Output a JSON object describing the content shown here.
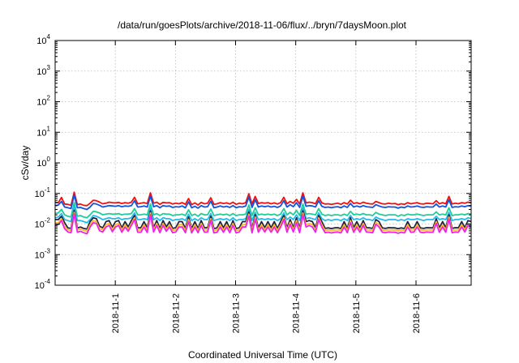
{
  "chart_data": {
    "type": "line",
    "title": "/data/run/goesPlots/archive/2018-11-06/flux/../bryn/7daysMoon.plot",
    "xlabel": "Coordinated Universal Time (UTC)",
    "ylabel": "cSv/day",
    "yscale": "log",
    "ylim": [
      0.0001,
      10000
    ],
    "xlim": [
      "2018-10-31T00:00",
      "2018-11-06T22:00"
    ],
    "x_ticks": [
      {
        "x": "2018-11-01T00:00",
        "label": "2018-11-1"
      },
      {
        "x": "2018-11-02T00:00",
        "label": "2018-11-2"
      },
      {
        "x": "2018-11-03T00:00",
        "label": "2018-11-3"
      },
      {
        "x": "2018-11-04T00:00",
        "label": "2018-11-4"
      },
      {
        "x": "2018-11-05T00:00",
        "label": "2018-11-5"
      },
      {
        "x": "2018-11-06T00:00",
        "label": "2018-11-6"
      }
    ],
    "y_ticks": [
      {
        "value": 0.0001,
        "base": "10",
        "exp": "-4"
      },
      {
        "value": 0.001,
        "base": "10",
        "exp": "-3"
      },
      {
        "value": 0.01,
        "base": "10",
        "exp": "-2"
      },
      {
        "value": 0.1,
        "base": "10",
        "exp": "-1"
      },
      {
        "value": 1,
        "base": "10",
        "exp": "0"
      },
      {
        "value": 10,
        "base": "10",
        "exp": "1"
      },
      {
        "value": 100,
        "base": "10",
        "exp": "2"
      },
      {
        "value": 1000,
        "base": "10",
        "exp": "3"
      },
      {
        "value": 10000,
        "base": "10",
        "exp": "4"
      }
    ],
    "grid": true,
    "legend": "none",
    "series": [
      {
        "color": "#ee1111",
        "values": [
          0.052,
          0.05,
          0.074,
          0.045,
          0.044,
          0.041,
          0.11,
          0.043,
          0.045,
          0.041,
          0.04,
          0.048,
          0.06,
          0.058,
          0.052,
          0.046,
          0.048,
          0.052,
          0.05,
          0.049,
          0.051,
          0.047,
          0.05,
          0.048,
          0.052,
          0.075,
          0.046,
          0.048,
          0.05,
          0.047,
          0.105,
          0.048,
          0.052,
          0.044,
          0.051,
          0.049,
          0.05,
          0.045,
          0.048,
          0.046,
          0.05,
          0.044,
          0.068,
          0.043,
          0.049,
          0.042,
          0.051,
          0.046,
          0.048,
          0.072,
          0.044,
          0.046,
          0.05,
          0.047,
          0.049,
          0.045,
          0.052,
          0.044,
          0.048,
          0.046,
          0.05,
          0.098,
          0.045,
          0.08,
          0.047,
          0.05,
          0.048,
          0.05,
          0.046,
          0.049,
          0.045,
          0.05,
          0.075,
          0.046,
          0.055,
          0.048,
          0.064,
          0.045,
          0.105,
          0.049,
          0.052,
          0.05,
          0.046,
          0.075,
          0.049,
          0.045,
          0.046,
          0.044,
          0.046,
          0.048,
          0.044,
          0.05,
          0.045,
          0.06,
          0.047,
          0.05,
          0.046,
          0.052,
          0.048,
          0.046,
          0.045,
          0.055,
          0.05,
          0.046,
          0.045,
          0.048,
          0.046,
          0.047,
          0.043,
          0.046,
          0.044,
          0.05,
          0.046,
          0.048,
          0.05,
          0.046,
          0.045,
          0.048,
          0.047,
          0.046,
          0.058,
          0.046,
          0.05,
          0.046,
          0.08,
          0.045,
          0.048,
          0.046,
          0.05,
          0.048,
          0.052,
          0.05
        ]
      },
      {
        "color": "#1155dd",
        "values": [
          0.04,
          0.042,
          0.055,
          0.036,
          0.034,
          0.032,
          0.088,
          0.034,
          0.035,
          0.032,
          0.03,
          0.036,
          0.047,
          0.045,
          0.041,
          0.036,
          0.038,
          0.04,
          0.039,
          0.038,
          0.04,
          0.037,
          0.039,
          0.038,
          0.04,
          0.058,
          0.036,
          0.037,
          0.039,
          0.036,
          0.082,
          0.037,
          0.04,
          0.034,
          0.04,
          0.038,
          0.039,
          0.035,
          0.037,
          0.036,
          0.039,
          0.034,
          0.053,
          0.034,
          0.038,
          0.033,
          0.04,
          0.036,
          0.037,
          0.056,
          0.034,
          0.036,
          0.039,
          0.036,
          0.038,
          0.035,
          0.04,
          0.034,
          0.037,
          0.036,
          0.039,
          0.076,
          0.035,
          0.062,
          0.036,
          0.039,
          0.037,
          0.039,
          0.036,
          0.038,
          0.035,
          0.039,
          0.058,
          0.036,
          0.043,
          0.037,
          0.05,
          0.035,
          0.082,
          0.038,
          0.04,
          0.039,
          0.036,
          0.058,
          0.038,
          0.035,
          0.036,
          0.034,
          0.036,
          0.037,
          0.034,
          0.039,
          0.035,
          0.047,
          0.036,
          0.039,
          0.036,
          0.04,
          0.037,
          0.036,
          0.035,
          0.043,
          0.039,
          0.036,
          0.035,
          0.037,
          0.036,
          0.036,
          0.033,
          0.036,
          0.034,
          0.039,
          0.036,
          0.037,
          0.039,
          0.036,
          0.035,
          0.037,
          0.036,
          0.036,
          0.045,
          0.036,
          0.039,
          0.036,
          0.062,
          0.035,
          0.037,
          0.036,
          0.039,
          0.037,
          0.04,
          0.039
        ]
      },
      {
        "color": "#22cc99",
        "values": [
          0.022,
          0.023,
          0.03,
          0.02,
          0.018,
          0.017,
          0.05,
          0.018,
          0.019,
          0.017,
          0.016,
          0.02,
          0.026,
          0.025,
          0.023,
          0.02,
          0.021,
          0.022,
          0.021,
          0.021,
          0.022,
          0.02,
          0.021,
          0.021,
          0.022,
          0.032,
          0.02,
          0.02,
          0.021,
          0.02,
          0.045,
          0.02,
          0.022,
          0.019,
          0.022,
          0.021,
          0.021,
          0.019,
          0.02,
          0.02,
          0.021,
          0.019,
          0.029,
          0.019,
          0.021,
          0.018,
          0.022,
          0.02,
          0.02,
          0.031,
          0.019,
          0.02,
          0.021,
          0.02,
          0.021,
          0.019,
          0.022,
          0.019,
          0.02,
          0.02,
          0.021,
          0.042,
          0.019,
          0.034,
          0.02,
          0.021,
          0.02,
          0.021,
          0.02,
          0.021,
          0.019,
          0.021,
          0.032,
          0.02,
          0.024,
          0.02,
          0.028,
          0.019,
          0.045,
          0.021,
          0.022,
          0.021,
          0.02,
          0.032,
          0.021,
          0.019,
          0.02,
          0.019,
          0.02,
          0.02,
          0.019,
          0.021,
          0.019,
          0.026,
          0.02,
          0.021,
          0.02,
          0.022,
          0.02,
          0.02,
          0.019,
          0.024,
          0.021,
          0.02,
          0.019,
          0.02,
          0.02,
          0.02,
          0.018,
          0.02,
          0.019,
          0.021,
          0.02,
          0.02,
          0.021,
          0.02,
          0.019,
          0.02,
          0.02,
          0.02,
          0.025,
          0.02,
          0.021,
          0.02,
          0.034,
          0.019,
          0.02,
          0.02,
          0.021,
          0.02,
          0.022,
          0.021
        ]
      },
      {
        "color": "#22bbee",
        "values": [
          0.016,
          0.017,
          0.022,
          0.014,
          0.013,
          0.012,
          0.036,
          0.013,
          0.013,
          0.012,
          0.011,
          0.014,
          0.019,
          0.018,
          0.016,
          0.014,
          0.015,
          0.016,
          0.015,
          0.015,
          0.016,
          0.014,
          0.015,
          0.015,
          0.016,
          0.023,
          0.014,
          0.014,
          0.015,
          0.014,
          0.033,
          0.014,
          0.016,
          0.013,
          0.016,
          0.015,
          0.015,
          0.013,
          0.014,
          0.014,
          0.015,
          0.013,
          0.021,
          0.013,
          0.015,
          0.013,
          0.016,
          0.014,
          0.014,
          0.022,
          0.013,
          0.014,
          0.015,
          0.014,
          0.015,
          0.013,
          0.016,
          0.013,
          0.014,
          0.014,
          0.015,
          0.03,
          0.013,
          0.024,
          0.014,
          0.015,
          0.014,
          0.015,
          0.014,
          0.015,
          0.013,
          0.015,
          0.023,
          0.014,
          0.017,
          0.014,
          0.02,
          0.013,
          0.033,
          0.015,
          0.016,
          0.015,
          0.014,
          0.023,
          0.015,
          0.013,
          0.014,
          0.013,
          0.014,
          0.014,
          0.013,
          0.015,
          0.013,
          0.019,
          0.014,
          0.015,
          0.014,
          0.016,
          0.014,
          0.014,
          0.013,
          0.017,
          0.015,
          0.014,
          0.013,
          0.014,
          0.014,
          0.014,
          0.013,
          0.014,
          0.013,
          0.015,
          0.014,
          0.014,
          0.015,
          0.014,
          0.013,
          0.014,
          0.014,
          0.014,
          0.018,
          0.014,
          0.015,
          0.014,
          0.024,
          0.013,
          0.014,
          0.014,
          0.015,
          0.014,
          0.016,
          0.015
        ]
      },
      {
        "color": "#222244",
        "values": [
          0.014,
          0.014,
          0.018,
          0.011,
          0.0075,
          0.0072,
          0.028,
          0.0074,
          0.008,
          0.0072,
          0.0068,
          0.012,
          0.016,
          0.015,
          0.0085,
          0.0075,
          0.012,
          0.013,
          0.0078,
          0.012,
          0.013,
          0.0075,
          0.012,
          0.008,
          0.013,
          0.019,
          0.0075,
          0.0075,
          0.012,
          0.0074,
          0.027,
          0.0076,
          0.013,
          0.0072,
          0.013,
          0.008,
          0.012,
          0.0072,
          0.0076,
          0.012,
          0.012,
          0.0072,
          0.017,
          0.0071,
          0.012,
          0.0072,
          0.013,
          0.0075,
          0.0076,
          0.018,
          0.0071,
          0.0075,
          0.012,
          0.0075,
          0.012,
          0.0072,
          0.013,
          0.0071,
          0.0076,
          0.012,
          0.012,
          0.025,
          0.0071,
          0.02,
          0.0075,
          0.012,
          0.0076,
          0.012,
          0.0075,
          0.012,
          0.0072,
          0.012,
          0.019,
          0.0075,
          0.014,
          0.0076,
          0.016,
          0.0072,
          0.027,
          0.012,
          0.013,
          0.012,
          0.0075,
          0.019,
          0.012,
          0.0072,
          0.0075,
          0.0071,
          0.0075,
          0.0076,
          0.0071,
          0.012,
          0.0072,
          0.016,
          0.0075,
          0.012,
          0.0075,
          0.013,
          0.0076,
          0.0075,
          0.0072,
          0.014,
          0.012,
          0.0075,
          0.0072,
          0.0076,
          0.0075,
          0.0075,
          0.007,
          0.0075,
          0.0071,
          0.012,
          0.0075,
          0.0076,
          0.012,
          0.0075,
          0.0072,
          0.0076,
          0.0075,
          0.0075,
          0.015,
          0.0075,
          0.012,
          0.0075,
          0.02,
          0.0072,
          0.0076,
          0.0075,
          0.012,
          0.0076,
          0.013,
          0.012
        ]
      },
      {
        "color": "#ffbb22",
        "values": [
          0.011,
          0.011,
          0.015,
          0.0085,
          0.0065,
          0.0062,
          0.024,
          0.0064,
          0.0068,
          0.0062,
          0.0058,
          0.0095,
          0.013,
          0.012,
          0.007,
          0.0065,
          0.0095,
          0.0105,
          0.0066,
          0.0095,
          0.0105,
          0.0064,
          0.0095,
          0.0068,
          0.0105,
          0.016,
          0.0064,
          0.0064,
          0.0095,
          0.0063,
          0.023,
          0.0065,
          0.0105,
          0.0062,
          0.0105,
          0.0068,
          0.0095,
          0.0062,
          0.0065,
          0.0095,
          0.0095,
          0.0062,
          0.014,
          0.0061,
          0.0095,
          0.0062,
          0.0105,
          0.0064,
          0.0065,
          0.015,
          0.0061,
          0.0064,
          0.0095,
          0.0064,
          0.0095,
          0.0062,
          0.0105,
          0.0061,
          0.0065,
          0.0095,
          0.0095,
          0.021,
          0.0061,
          0.017,
          0.0064,
          0.0095,
          0.0065,
          0.0095,
          0.0064,
          0.0095,
          0.0062,
          0.0095,
          0.016,
          0.0064,
          0.0115,
          0.0065,
          0.013,
          0.0062,
          0.023,
          0.0095,
          0.0105,
          0.0095,
          0.0064,
          0.016,
          0.0095,
          0.0062,
          0.0064,
          0.0061,
          0.0064,
          0.0065,
          0.0061,
          0.0095,
          0.0062,
          0.013,
          0.0064,
          0.0095,
          0.0064,
          0.0105,
          0.0065,
          0.0064,
          0.0062,
          0.0115,
          0.0095,
          0.0064,
          0.0062,
          0.0065,
          0.0064,
          0.0064,
          0.006,
          0.0064,
          0.0061,
          0.0095,
          0.0064,
          0.0065,
          0.0095,
          0.0064,
          0.0062,
          0.0065,
          0.0064,
          0.0064,
          0.012,
          0.0064,
          0.0095,
          0.0064,
          0.017,
          0.0062,
          0.0065,
          0.0064,
          0.0095,
          0.0065,
          0.0105,
          0.0095
        ]
      },
      {
        "color": "#ee22ee",
        "values": [
          0.009,
          0.0095,
          0.013,
          0.007,
          0.0055,
          0.0052,
          0.021,
          0.0054,
          0.0058,
          0.0052,
          0.0048,
          0.008,
          0.011,
          0.0105,
          0.006,
          0.0055,
          0.008,
          0.009,
          0.0056,
          0.008,
          0.009,
          0.0054,
          0.008,
          0.0058,
          0.009,
          0.014,
          0.0054,
          0.0054,
          0.008,
          0.0053,
          0.02,
          0.0055,
          0.009,
          0.0052,
          0.009,
          0.0058,
          0.008,
          0.0052,
          0.0055,
          0.008,
          0.008,
          0.0052,
          0.012,
          0.0051,
          0.008,
          0.0052,
          0.009,
          0.0054,
          0.0055,
          0.013,
          0.0051,
          0.0054,
          0.008,
          0.0054,
          0.008,
          0.0052,
          0.009,
          0.0051,
          0.0055,
          0.008,
          0.008,
          0.018,
          0.0051,
          0.0145,
          0.0054,
          0.008,
          0.0055,
          0.008,
          0.0054,
          0.008,
          0.0052,
          0.008,
          0.014,
          0.0054,
          0.0098,
          0.0055,
          0.011,
          0.0052,
          0.02,
          0.008,
          0.009,
          0.008,
          0.0054,
          0.014,
          0.008,
          0.0052,
          0.0054,
          0.0051,
          0.0054,
          0.0055,
          0.0051,
          0.008,
          0.0052,
          0.011,
          0.0054,
          0.008,
          0.0054,
          0.009,
          0.0055,
          0.0054,
          0.0052,
          0.0098,
          0.008,
          0.0054,
          0.0052,
          0.0055,
          0.0054,
          0.0054,
          0.005,
          0.0054,
          0.0051,
          0.008,
          0.0054,
          0.0055,
          0.008,
          0.0054,
          0.0052,
          0.0055,
          0.0054,
          0.0054,
          0.0105,
          0.0054,
          0.008,
          0.0054,
          0.0145,
          0.0052,
          0.0055,
          0.0054,
          0.008,
          0.0055,
          0.009,
          0.008
        ]
      }
    ]
  }
}
